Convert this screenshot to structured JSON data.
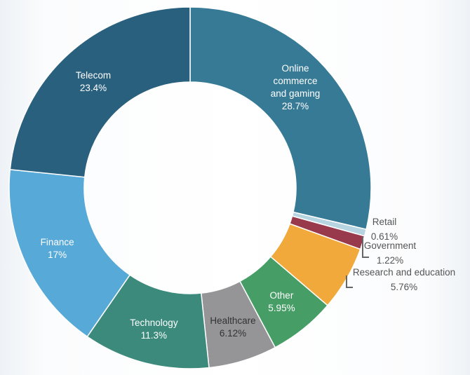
{
  "chart_data": {
    "type": "pie",
    "variant": "donut",
    "title": "",
    "start": "top",
    "direction": "clockwise",
    "slices": [
      {
        "name": "Online commerce and gaming",
        "label_lines": [
          "Online",
          "commerce",
          "and gaming"
        ],
        "value": 28.7,
        "value_label": "28.7%",
        "color": "#377a96"
      },
      {
        "name": "Retail",
        "label_lines": [
          "Retail"
        ],
        "value": 0.61,
        "value_label": "0.61%",
        "color": "#b6d5e1"
      },
      {
        "name": "Government",
        "label_lines": [
          "Government"
        ],
        "value": 1.22,
        "value_label": "1.22%",
        "color": "#983a4b"
      },
      {
        "name": "Research and education",
        "label_lines": [
          "Research and education"
        ],
        "value": 5.76,
        "value_label": "5.76%",
        "color": "#f2a93b"
      },
      {
        "name": "Other",
        "label_lines": [
          "Other"
        ],
        "value": 5.95,
        "value_label": "5.95%",
        "color": "#469e66"
      },
      {
        "name": "Healthcare",
        "label_lines": [
          "Healthcare"
        ],
        "value": 6.12,
        "value_label": "6.12%",
        "color": "#959597"
      },
      {
        "name": "Technology",
        "label_lines": [
          "Technology"
        ],
        "value": 11.3,
        "value_label": "11.3%",
        "color": "#3b8a7c"
      },
      {
        "name": "Finance",
        "label_lines": [
          "Finance"
        ],
        "value": 17,
        "value_label": "17%",
        "color": "#57a9d8"
      },
      {
        "name": "Telecom",
        "label_lines": [
          "Telecom"
        ],
        "value": 23.4,
        "value_label": "23.4%",
        "color": "#29607e"
      }
    ]
  }
}
